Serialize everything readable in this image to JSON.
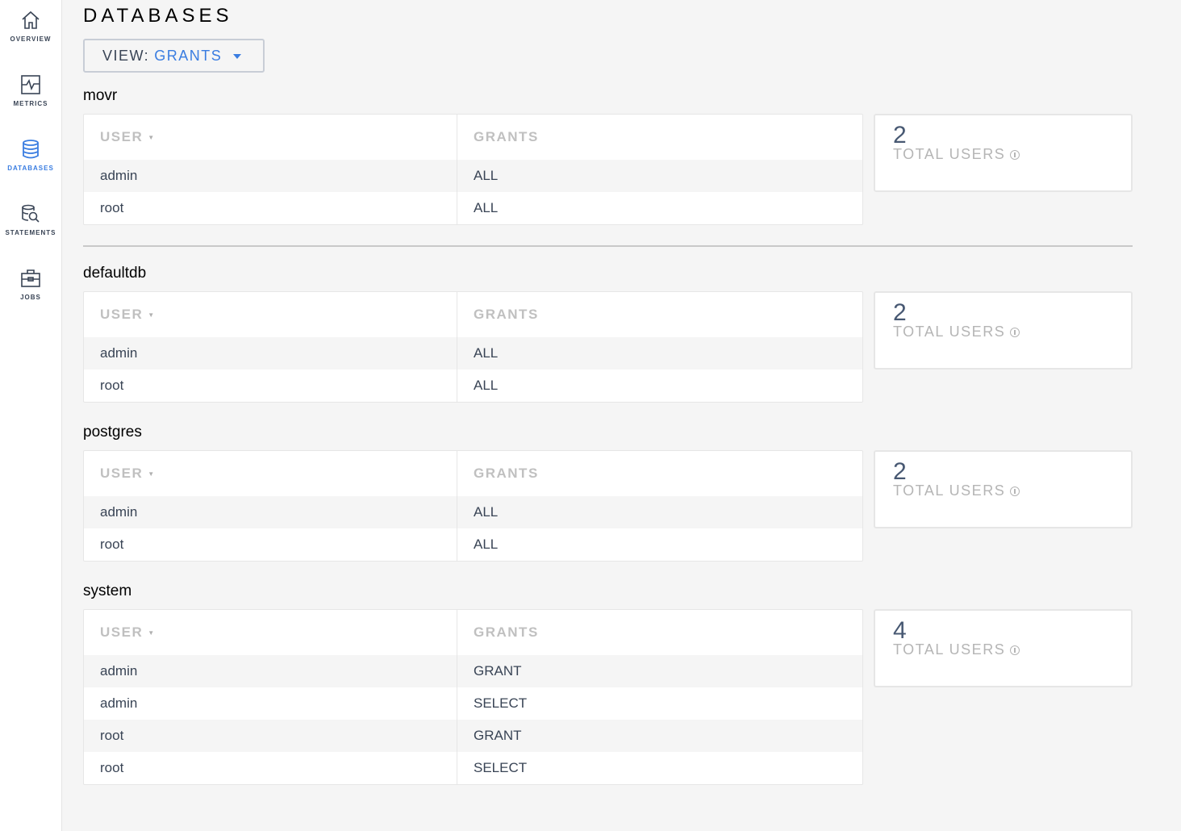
{
  "sidebar": {
    "items": [
      {
        "label": "OVERVIEW",
        "icon": "home-icon"
      },
      {
        "label": "METRICS",
        "icon": "metrics-icon"
      },
      {
        "label": "DATABASES",
        "icon": "database-icon",
        "active": true
      },
      {
        "label": "STATEMENTS",
        "icon": "statements-icon"
      },
      {
        "label": "JOBS",
        "icon": "briefcase-icon"
      }
    ]
  },
  "header": {
    "title": "DATABASES",
    "view_label": "VIEW:",
    "view_value": "GRANTS"
  },
  "colors": {
    "accent": "#3a7de1",
    "text": "#394455"
  },
  "table_headers": {
    "user": "USER",
    "grants": "GRANTS"
  },
  "card_label": "TOTAL USERS",
  "databases": [
    {
      "name": "movr",
      "total_users": "2",
      "rows": [
        [
          "admin",
          "ALL"
        ],
        [
          "root",
          "ALL"
        ]
      ]
    },
    {
      "name": "defaultdb",
      "total_users": "2",
      "rows": [
        [
          "admin",
          "ALL"
        ],
        [
          "root",
          "ALL"
        ]
      ]
    },
    {
      "name": "postgres",
      "total_users": "2",
      "rows": [
        [
          "admin",
          "ALL"
        ],
        [
          "root",
          "ALL"
        ]
      ]
    },
    {
      "name": "system",
      "total_users": "4",
      "rows": [
        [
          "admin",
          "GRANT"
        ],
        [
          "admin",
          "SELECT"
        ],
        [
          "root",
          "GRANT"
        ],
        [
          "root",
          "SELECT"
        ]
      ]
    }
  ]
}
